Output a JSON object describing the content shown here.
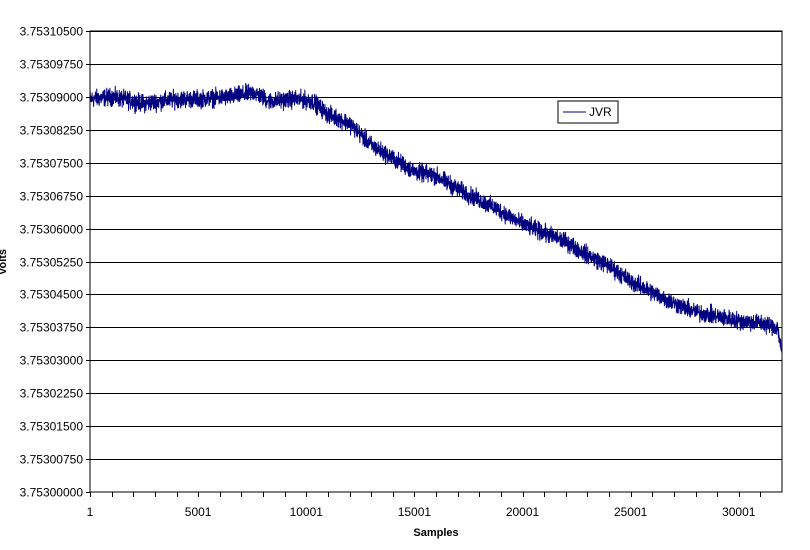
{
  "chart_data": {
    "type": "line",
    "title": "",
    "xlabel": "Samples",
    "ylabel": "Volts",
    "xlim": [
      1,
      32000
    ],
    "ylim": [
      3.753,
      3.753105
    ],
    "x_ticks": [
      1,
      5001,
      10001,
      15001,
      20001,
      25001,
      30001
    ],
    "x_tick_labels": [
      "1",
      "5001",
      "10001",
      "15001",
      "20001",
      "25001",
      "30001"
    ],
    "y_ticks": [
      3.753,
      3.7530075,
      3.753015,
      3.7530225,
      3.75303,
      3.7530375,
      3.753045,
      3.7530525,
      3.75306,
      3.7530675,
      3.753075,
      3.7530825,
      3.75309,
      3.7530975,
      3.753105
    ],
    "y_tick_labels": [
      "3.75300000",
      "3.75300750",
      "3.75301500",
      "3.75302250",
      "3.75303000",
      "3.75303750",
      "3.75304500",
      "3.75305250",
      "3.75306000",
      "3.75306750",
      "3.75307500",
      "3.75308250",
      "3.75309000",
      "3.75309750",
      "3.75310500"
    ],
    "grid": "horizontal major",
    "legend_position": "upper-right",
    "series": [
      {
        "name": "JVR",
        "color": "#000080",
        "trend_x": [
          1,
          1000,
          2500,
          4000,
          5001,
          6500,
          7600,
          8300,
          9500,
          10300,
          11000,
          12000,
          13000,
          14000,
          15001,
          16000,
          17000,
          18000,
          19000,
          20001,
          21000,
          22000,
          23000,
          24000,
          25001,
          26000,
          27000,
          28000,
          29000,
          30001,
          31000,
          31800,
          32000
        ],
        "trend_y": [
          3.7530895,
          3.75309,
          3.7530885,
          3.7530895,
          3.7530895,
          3.75309,
          3.753091,
          3.753089,
          3.7530895,
          3.753089,
          3.753086,
          3.753084,
          3.753079,
          3.753076,
          3.753073,
          3.753072,
          3.753069,
          3.7530665,
          3.753064,
          3.753061,
          3.753059,
          3.753057,
          3.753054,
          3.7530515,
          3.753048,
          3.7530455,
          3.753043,
          3.753041,
          3.75304,
          3.753039,
          3.7530385,
          3.7530375,
          3.7530315
        ],
        "noise_amplitude": 1.2e-06
      }
    ]
  }
}
